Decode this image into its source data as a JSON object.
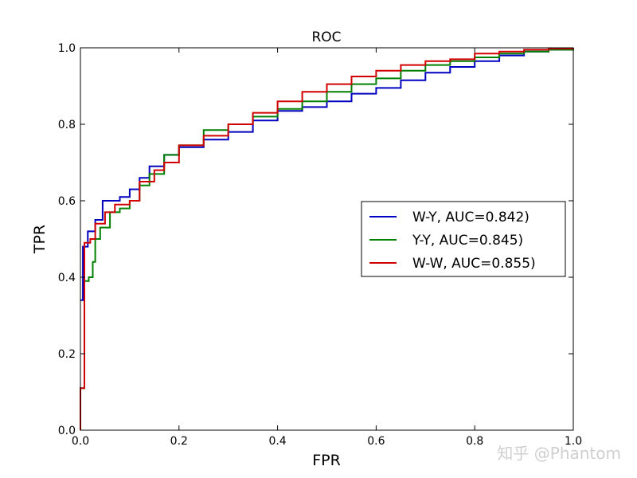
{
  "watermark": "知乎 @Phantom",
  "chart_data": {
    "type": "line",
    "step": true,
    "title": "ROC",
    "xlabel": "FPR",
    "ylabel": "TPR",
    "xlim": [
      0.0,
      1.0
    ],
    "ylim": [
      0.0,
      1.0
    ],
    "xticks": [
      0.0,
      0.2,
      0.4,
      0.6,
      0.8,
      1.0
    ],
    "yticks": [
      0.0,
      0.2,
      0.4,
      0.6,
      0.8,
      1.0
    ],
    "xtick_labels": [
      "0.0",
      "0.2",
      "0.4",
      "0.6",
      "0.8",
      "1.0"
    ],
    "ytick_labels": [
      "0.0",
      "0.2",
      "0.4",
      "0.6",
      "0.8",
      "1.0"
    ],
    "grid": false,
    "legend_position": "center-right",
    "series": [
      {
        "name": "W-Y, AUC=0.842)",
        "color": "#0000bf",
        "points": [
          [
            0.0,
            0.34
          ],
          [
            0.005,
            0.48
          ],
          [
            0.015,
            0.52
          ],
          [
            0.03,
            0.55
          ],
          [
            0.045,
            0.6
          ],
          [
            0.08,
            0.61
          ],
          [
            0.1,
            0.63
          ],
          [
            0.12,
            0.66
          ],
          [
            0.14,
            0.69
          ],
          [
            0.17,
            0.72
          ],
          [
            0.2,
            0.74
          ],
          [
            0.25,
            0.76
          ],
          [
            0.3,
            0.78
          ],
          [
            0.35,
            0.81
          ],
          [
            0.4,
            0.835
          ],
          [
            0.45,
            0.845
          ],
          [
            0.5,
            0.86
          ],
          [
            0.55,
            0.88
          ],
          [
            0.6,
            0.895
          ],
          [
            0.65,
            0.915
          ],
          [
            0.7,
            0.935
          ],
          [
            0.75,
            0.95
          ],
          [
            0.8,
            0.965
          ],
          [
            0.85,
            0.98
          ],
          [
            0.9,
            0.99
          ],
          [
            0.95,
            0.995
          ],
          [
            1.0,
            1.0
          ]
        ]
      },
      {
        "name": "Y-Y, AUC=0.845)",
        "color": "#008000",
        "points": [
          [
            0.0,
            0.0
          ],
          [
            0.0,
            0.11
          ],
          [
            0.008,
            0.11
          ],
          [
            0.008,
            0.39
          ],
          [
            0.017,
            0.4
          ],
          [
            0.025,
            0.44
          ],
          [
            0.03,
            0.5
          ],
          [
            0.04,
            0.53
          ],
          [
            0.06,
            0.57
          ],
          [
            0.08,
            0.58
          ],
          [
            0.1,
            0.6
          ],
          [
            0.12,
            0.64
          ],
          [
            0.14,
            0.67
          ],
          [
            0.17,
            0.72
          ],
          [
            0.2,
            0.745
          ],
          [
            0.25,
            0.785
          ],
          [
            0.3,
            0.8
          ],
          [
            0.35,
            0.82
          ],
          [
            0.4,
            0.84
          ],
          [
            0.45,
            0.86
          ],
          [
            0.5,
            0.885
          ],
          [
            0.55,
            0.905
          ],
          [
            0.6,
            0.92
          ],
          [
            0.65,
            0.94
          ],
          [
            0.7,
            0.955
          ],
          [
            0.75,
            0.965
          ],
          [
            0.8,
            0.975
          ],
          [
            0.85,
            0.985
          ],
          [
            0.9,
            0.99
          ],
          [
            0.95,
            0.995
          ],
          [
            1.0,
            1.0
          ]
        ]
      },
      {
        "name": "W-W, AUC=0.855)",
        "color": "#d00000",
        "points": [
          [
            0.0,
            0.0
          ],
          [
            0.0,
            0.11
          ],
          [
            0.008,
            0.11
          ],
          [
            0.008,
            0.49
          ],
          [
            0.02,
            0.5
          ],
          [
            0.03,
            0.54
          ],
          [
            0.05,
            0.57
          ],
          [
            0.07,
            0.59
          ],
          [
            0.1,
            0.6
          ],
          [
            0.12,
            0.65
          ],
          [
            0.15,
            0.68
          ],
          [
            0.17,
            0.7
          ],
          [
            0.2,
            0.745
          ],
          [
            0.25,
            0.77
          ],
          [
            0.3,
            0.8
          ],
          [
            0.35,
            0.83
          ],
          [
            0.4,
            0.86
          ],
          [
            0.45,
            0.885
          ],
          [
            0.5,
            0.905
          ],
          [
            0.55,
            0.925
          ],
          [
            0.6,
            0.94
          ],
          [
            0.65,
            0.955
          ],
          [
            0.7,
            0.965
          ],
          [
            0.75,
            0.97
          ],
          [
            0.8,
            0.985
          ],
          [
            0.85,
            0.99
          ],
          [
            0.9,
            0.995
          ],
          [
            0.95,
            0.998
          ],
          [
            1.0,
            1.0
          ]
        ]
      }
    ]
  }
}
